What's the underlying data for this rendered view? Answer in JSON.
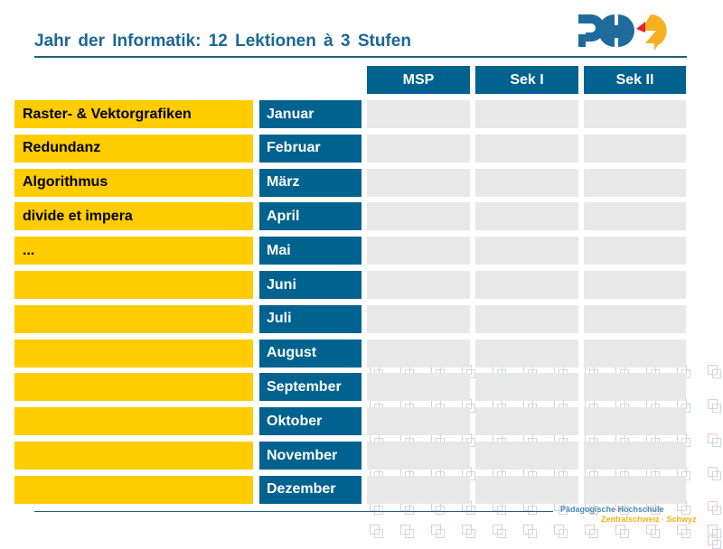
{
  "title": "Jahr der Informatik:  12 Lektionen  à 3 Stufen",
  "columns": [
    "MSP",
    "Sek I",
    "Sek II"
  ],
  "rows": [
    {
      "topic": "Raster- & Vektorgrafiken",
      "month": "Januar"
    },
    {
      "topic": "Redundanz",
      "month": "Februar"
    },
    {
      "topic": "Algorithmus",
      "month": "März"
    },
    {
      "topic": "divide et impera",
      "month": "April"
    },
    {
      "topic": " ...",
      "month": "Mai"
    },
    {
      "topic": "",
      "month": "Juni"
    },
    {
      "topic": "",
      "month": "Juli"
    },
    {
      "topic": "",
      "month": "August"
    },
    {
      "topic": "",
      "month": "September"
    },
    {
      "topic": "",
      "month": "Oktober"
    },
    {
      "topic": "",
      "month": "November"
    },
    {
      "topic": "",
      "month": "Dezember"
    }
  ],
  "footer": {
    "line1": "Pädagogische Hochschule",
    "line2": "Zentralschweiz · Schwyz"
  },
  "logo": {
    "text": "PHZ"
  },
  "colors": {
    "blue": "#00628f",
    "yellow": "#ffcc00",
    "grey": "#e8e8e8",
    "logo_orange": "#f5b020",
    "logo_red": "#e8202a"
  }
}
